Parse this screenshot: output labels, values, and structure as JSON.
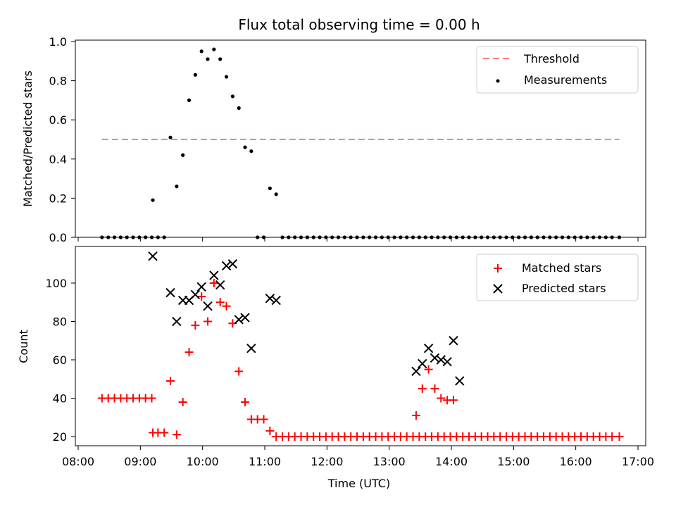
{
  "title": "Flux total observing time = 0.00 h",
  "colors": {
    "threshold": "#ff7f7f",
    "measurements": "#000000",
    "matched": "#ff0000",
    "predicted": "#000000"
  },
  "chart_data": [
    {
      "type": "scatter",
      "ylabel": "Matched/Predicted stars",
      "ylim": [
        0,
        1.0
      ],
      "yticks": [
        0.0,
        0.2,
        0.4,
        0.6,
        0.8,
        1.0
      ],
      "ytick_labels": [
        "0.0",
        "0.2",
        "0.4",
        "0.6",
        "0.8",
        "1.0"
      ],
      "legend": {
        "position": "top-right",
        "entries": [
          "Threshold",
          "Measurements"
        ]
      },
      "threshold": {
        "name": "Threshold",
        "value": 0.5,
        "x_range": [
          "08:23",
          "16:42"
        ]
      },
      "series": [
        {
          "name": "Measurements",
          "points": [
            [
              "08:23",
              0
            ],
            [
              "08:29",
              0
            ],
            [
              "08:35",
              0
            ],
            [
              "08:41",
              0
            ],
            [
              "08:47",
              0
            ],
            [
              "08:53",
              0
            ],
            [
              "08:59",
              0
            ],
            [
              "09:05",
              0
            ],
            [
              "09:11",
              0
            ],
            [
              "09:12",
              0.19
            ],
            [
              "09:17",
              0
            ],
            [
              "09:23",
              0
            ],
            [
              "09:29",
              0.51
            ],
            [
              "09:35",
              0.26
            ],
            [
              "09:41",
              0.42
            ],
            [
              "09:47",
              0.7
            ],
            [
              "09:53",
              0.83
            ],
            [
              "09:59",
              0.95
            ],
            [
              "10:05",
              0.91
            ],
            [
              "10:11",
              0.96
            ],
            [
              "10:17",
              0.91
            ],
            [
              "10:23",
              0.82
            ],
            [
              "10:29",
              0.72
            ],
            [
              "10:35",
              0.66
            ],
            [
              "10:41",
              0.46
            ],
            [
              "10:47",
              0.44
            ],
            [
              "10:53",
              0
            ],
            [
              "10:59",
              0
            ],
            [
              "11:05",
              0.25
            ],
            [
              "11:11",
              0.22
            ],
            [
              "11:17",
              0
            ],
            [
              "11:23",
              0
            ],
            [
              "11:29",
              0
            ],
            [
              "11:35",
              0
            ],
            [
              "11:41",
              0
            ],
            [
              "11:47",
              0
            ],
            [
              "11:53",
              0
            ],
            [
              "11:59",
              0
            ],
            [
              "12:05",
              0
            ],
            [
              "12:11",
              0
            ],
            [
              "12:17",
              0
            ],
            [
              "12:23",
              0
            ],
            [
              "12:29",
              0
            ],
            [
              "12:35",
              0
            ],
            [
              "12:41",
              0
            ],
            [
              "12:47",
              0
            ],
            [
              "12:53",
              0
            ],
            [
              "12:59",
              0
            ],
            [
              "13:05",
              0
            ],
            [
              "13:11",
              0
            ],
            [
              "13:17",
              0
            ],
            [
              "13:23",
              0
            ],
            [
              "13:29",
              0
            ],
            [
              "13:35",
              0
            ],
            [
              "13:41",
              0
            ],
            [
              "13:47",
              0
            ],
            [
              "13:53",
              0
            ],
            [
              "13:59",
              0
            ],
            [
              "14:05",
              0
            ],
            [
              "14:11",
              0
            ],
            [
              "14:17",
              0
            ],
            [
              "14:23",
              0
            ],
            [
              "14:29",
              0
            ],
            [
              "14:35",
              0
            ],
            [
              "14:41",
              0
            ],
            [
              "14:47",
              0
            ],
            [
              "14:53",
              0
            ],
            [
              "14:59",
              0
            ],
            [
              "15:05",
              0
            ],
            [
              "15:11",
              0
            ],
            [
              "15:17",
              0
            ],
            [
              "15:23",
              0
            ],
            [
              "15:29",
              0
            ],
            [
              "15:35",
              0
            ],
            [
              "15:41",
              0
            ],
            [
              "15:47",
              0
            ],
            [
              "15:53",
              0
            ],
            [
              "15:59",
              0
            ],
            [
              "16:05",
              0
            ],
            [
              "16:11",
              0
            ],
            [
              "16:17",
              0
            ],
            [
              "16:23",
              0
            ],
            [
              "16:29",
              0
            ],
            [
              "16:35",
              0
            ],
            [
              "16:42",
              0
            ]
          ]
        }
      ]
    },
    {
      "type": "scatter",
      "xlabel": "Time (UTC)",
      "ylabel": "Count",
      "ylim": [
        15,
        118
      ],
      "yticks": [
        20,
        40,
        60,
        80,
        100
      ],
      "ytick_labels": [
        "20",
        "40",
        "60",
        "80",
        "100"
      ],
      "xticks": [
        "08:00",
        "09:00",
        "10:00",
        "11:00",
        "12:00",
        "13:00",
        "14:00",
        "15:00",
        "16:00",
        "17:00"
      ],
      "legend": {
        "position": "top-right",
        "entries": [
          "Matched stars",
          "Predicted stars"
        ]
      },
      "series": [
        {
          "name": "Matched stars",
          "points": [
            [
              "08:23",
              40
            ],
            [
              "08:29",
              40
            ],
            [
              "08:35",
              40
            ],
            [
              "08:41",
              40
            ],
            [
              "08:47",
              40
            ],
            [
              "08:53",
              40
            ],
            [
              "08:59",
              40
            ],
            [
              "09:05",
              40
            ],
            [
              "09:11",
              40
            ],
            [
              "09:12",
              22
            ],
            [
              "09:17",
              22
            ],
            [
              "09:23",
              22
            ],
            [
              "09:29",
              49
            ],
            [
              "09:35",
              21
            ],
            [
              "09:41",
              38
            ],
            [
              "09:47",
              64
            ],
            [
              "09:53",
              78
            ],
            [
              "09:59",
              93
            ],
            [
              "10:05",
              80
            ],
            [
              "10:11",
              100
            ],
            [
              "10:17",
              90
            ],
            [
              "10:23",
              88
            ],
            [
              "10:29",
              79
            ],
            [
              "10:35",
              54
            ],
            [
              "10:41",
              38
            ],
            [
              "10:47",
              29
            ],
            [
              "10:53",
              29
            ],
            [
              "10:59",
              29
            ],
            [
              "11:05",
              23
            ],
            [
              "11:11",
              20
            ],
            [
              "11:17",
              20
            ],
            [
              "11:23",
              20
            ],
            [
              "11:29",
              20
            ],
            [
              "11:35",
              20
            ],
            [
              "11:41",
              20
            ],
            [
              "11:47",
              20
            ],
            [
              "11:53",
              20
            ],
            [
              "11:59",
              20
            ],
            [
              "12:05",
              20
            ],
            [
              "12:11",
              20
            ],
            [
              "12:17",
              20
            ],
            [
              "12:23",
              20
            ],
            [
              "12:29",
              20
            ],
            [
              "12:35",
              20
            ],
            [
              "12:41",
              20
            ],
            [
              "12:47",
              20
            ],
            [
              "12:53",
              20
            ],
            [
              "12:59",
              20
            ],
            [
              "13:05",
              20
            ],
            [
              "13:11",
              20
            ],
            [
              "13:17",
              20
            ],
            [
              "13:23",
              20
            ],
            [
              "13:29",
              20
            ],
            [
              "13:35",
              20
            ],
            [
              "13:41",
              20
            ],
            [
              "13:47",
              20
            ],
            [
              "13:53",
              20
            ],
            [
              "13:59",
              20
            ],
            [
              "14:05",
              20
            ],
            [
              "14:11",
              20
            ],
            [
              "14:17",
              20
            ],
            [
              "14:23",
              20
            ],
            [
              "14:29",
              20
            ],
            [
              "14:35",
              20
            ],
            [
              "14:41",
              20
            ],
            [
              "14:47",
              20
            ],
            [
              "14:53",
              20
            ],
            [
              "14:59",
              20
            ],
            [
              "15:05",
              20
            ],
            [
              "15:11",
              20
            ],
            [
              "15:17",
              20
            ],
            [
              "15:23",
              20
            ],
            [
              "15:29",
              20
            ],
            [
              "15:35",
              20
            ],
            [
              "15:41",
              20
            ],
            [
              "15:47",
              20
            ],
            [
              "15:53",
              20
            ],
            [
              "15:59",
              20
            ],
            [
              "16:05",
              20
            ],
            [
              "16:11",
              20
            ],
            [
              "16:17",
              20
            ],
            [
              "16:23",
              20
            ],
            [
              "16:29",
              20
            ],
            [
              "16:35",
              20
            ],
            [
              "16:42",
              20
            ],
            [
              "13:26",
              31
            ],
            [
              "13:32",
              45
            ],
            [
              "13:38",
              55
            ],
            [
              "13:44",
              45
            ],
            [
              "13:50",
              40
            ],
            [
              "13:56",
              39
            ],
            [
              "14:02",
              39
            ]
          ]
        },
        {
          "name": "Predicted stars",
          "points": [
            [
              "09:12",
              114
            ],
            [
              "09:29",
              95
            ],
            [
              "09:35",
              80
            ],
            [
              "09:41",
              91
            ],
            [
              "09:47",
              91
            ],
            [
              "09:53",
              94
            ],
            [
              "09:59",
              98
            ],
            [
              "10:05",
              88
            ],
            [
              "10:11",
              104
            ],
            [
              "10:17",
              99
            ],
            [
              "10:23",
              109
            ],
            [
              "10:29",
              110
            ],
            [
              "10:35",
              81
            ],
            [
              "10:41",
              82
            ],
            [
              "10:47",
              66
            ],
            [
              "11:05",
              92
            ],
            [
              "11:11",
              91
            ],
            [
              "13:26",
              54
            ],
            [
              "13:32",
              58
            ],
            [
              "13:38",
              66
            ],
            [
              "13:44",
              61
            ],
            [
              "13:50",
              60
            ],
            [
              "13:56",
              59
            ],
            [
              "14:02",
              70
            ],
            [
              "14:08",
              49
            ]
          ]
        }
      ]
    }
  ]
}
